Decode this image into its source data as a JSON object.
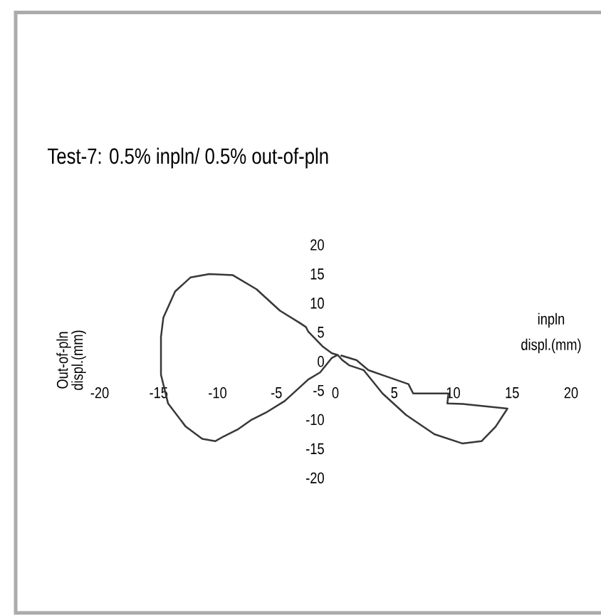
{
  "chart_data": {
    "type": "line",
    "title": "Test-7: 0.5% inpln/ 0.5% out-of-pln",
    "xlabel": "inpln displ.(mm)",
    "ylabel": "Out-of-pln displ.(mm)",
    "x": [
      0.2,
      -0.3,
      -1.1,
      -2.3,
      -2.5,
      -3.1,
      -4.7,
      -6.7,
      -8.7,
      -10.7,
      -12.3,
      -13.6,
      -14.6,
      -14.8,
      -14.8,
      -14.2,
      -12.7,
      -11.3,
      -10.2,
      -9.5,
      -8.3,
      -7.1,
      -5.9,
      -4.3,
      -2.3,
      -1.3,
      -0.3,
      0.2,
      0.6,
      1.2,
      2.4,
      4,
      6,
      8.4,
      10.8,
      12.4,
      13.6,
      14.6,
      10.8,
      9.5,
      9.6,
      6.6,
      6.2,
      4.2,
      2.8,
      1.8,
      0.5
    ],
    "values": [
      1.1,
      1.4,
      2.6,
      5.1,
      5.9,
      6.7,
      8.7,
      12.4,
      14.8,
      15,
      14.4,
      12,
      7.5,
      4.2,
      -2.3,
      -7.2,
      -11.2,
      -13.3,
      -13.7,
      -12.9,
      -11.7,
      -10,
      -8.8,
      -6.8,
      -3.1,
      -1.9,
      0.6,
      1.1,
      0.2,
      -0.7,
      -1.5,
      -5.5,
      -9.2,
      -12.5,
      -14.1,
      -13.7,
      -11.2,
      -8.1,
      -7.3,
      -7.2,
      -5.5,
      -5.5,
      -3.9,
      -2.5,
      -1.5,
      0.2,
      1
    ],
    "color": "#383838",
    "xlim": [
      -20,
      20
    ],
    "ylim": [
      -20,
      20
    ],
    "xticks": [
      -20,
      -15,
      -10,
      -5,
      0,
      5,
      10,
      15,
      20
    ],
    "yticks": [
      -20,
      -15,
      -10,
      -5,
      0,
      5,
      10,
      15,
      20
    ]
  }
}
